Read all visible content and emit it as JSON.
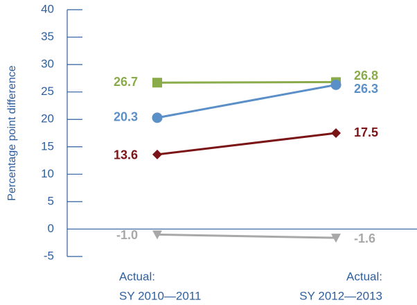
{
  "chart_data": {
    "type": "line",
    "y_label": "Percentage point difference",
    "categories": [
      [
        "Actual:",
        "SY 2010—2011"
      ],
      [
        "Actual:",
        "SY 2012—2013"
      ]
    ],
    "series": [
      {
        "color": "#8aab4a",
        "marker": "square",
        "values": [
          26.7,
          26.8
        ]
      },
      {
        "color": "#5b8fc7",
        "marker": "circle",
        "values": [
          20.3,
          26.3
        ]
      },
      {
        "color": "#7b1416",
        "marker": "diamond",
        "values": [
          13.6,
          17.5
        ]
      },
      {
        "color": "#a8a8a8",
        "marker": "triangle-down",
        "values": [
          -1,
          -1.6
        ],
        "value_labels": [
          "-1.0",
          "-1.6"
        ]
      }
    ],
    "ylim": [
      -5,
      40
    ],
    "yticks": [
      -5,
      0,
      5,
      10,
      15,
      20,
      25,
      30,
      35,
      40
    ]
  }
}
